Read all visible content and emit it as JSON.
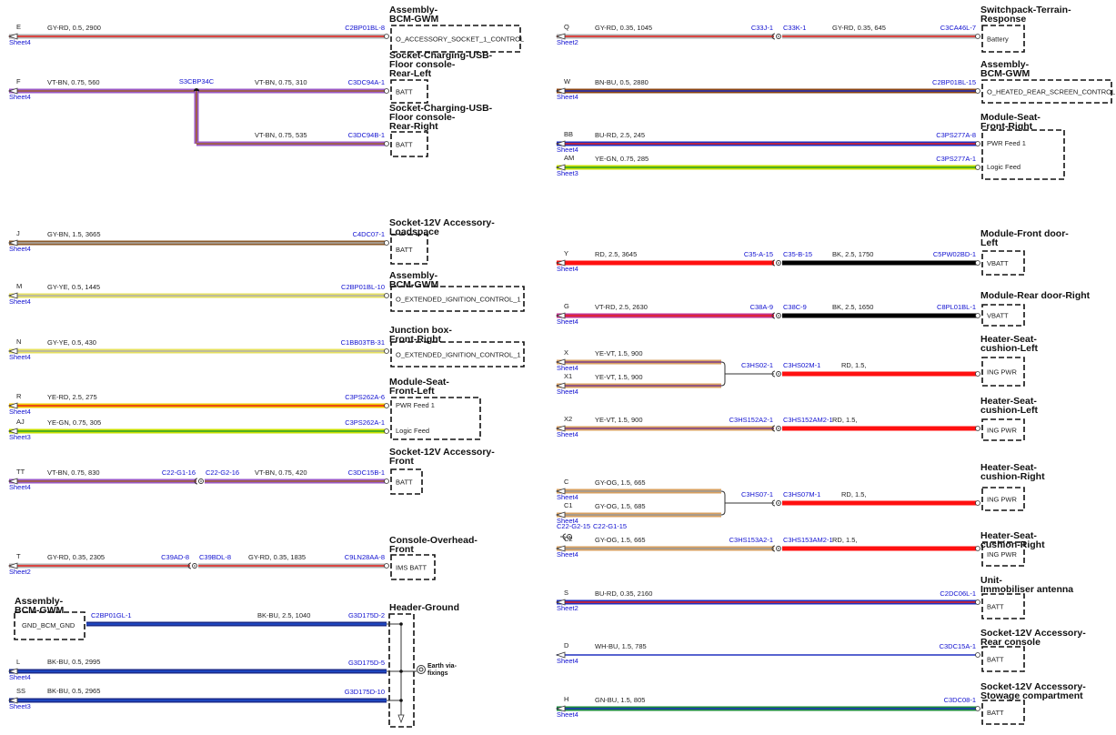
{
  "blocks": [
    {
      "title": [
        "Assembly-",
        "BCM-GWM"
      ],
      "pins": [
        "O_ACCESSORY_SOCKET_1_CONTROL"
      ],
      "wires": [
        {
          "id": "E",
          "sheet": "Sheet4",
          "label": "GY-RD, 0.5, 2900",
          "connector": "C2BP01BL-8"
        }
      ]
    },
    {
      "title": [
        "Socket-Charging-USB-",
        "Floor console-",
        "Rear-Left"
      ],
      "pins": [
        "BATT"
      ],
      "wires": [
        {
          "id": "F",
          "sheet": "Sheet4",
          "label": "VT-BN, 0.75, 560",
          "splice": "S3CBP34C",
          "label2": "VT-BN, 0.75, 310",
          "connector": "C3DC94A-1"
        }
      ]
    },
    {
      "title": [
        "Socket-Charging-USB-",
        "Floor console-",
        "Rear-Right"
      ],
      "pins": [
        "BATT"
      ],
      "wires": [
        {
          "label": "VT-BN, 0.75, 535",
          "connector": "C3DC94B-1"
        }
      ]
    },
    {
      "title": [
        "Socket-12V Accessory-",
        "Loadspace"
      ],
      "pins": [
        "BATT"
      ],
      "wires": [
        {
          "id": "J",
          "sheet": "Sheet4",
          "label": "GY-BN, 1.5, 3665",
          "connector": "C4DC07-1"
        }
      ]
    },
    {
      "title": [
        "Assembly-",
        "BCM-GWM"
      ],
      "pins": [
        "O_EXTENDED_IGNITION_CONTROL_1"
      ],
      "wires": [
        {
          "id": "M",
          "sheet": "Sheet4",
          "label": "GY-YE, 0.5, 1445",
          "connector": "C2BP01BL-10"
        }
      ]
    },
    {
      "title": [
        "Junction box-",
        "Front-Right"
      ],
      "pins": [
        "O_EXTENDED_IGNITION_CONTROL_1"
      ],
      "wires": [
        {
          "id": "N",
          "sheet": "Sheet4",
          "label": "GY-YE, 0.5, 430",
          "connector": "C1BB03TB-31"
        }
      ]
    },
    {
      "title": [
        "Module-Seat-",
        "Front-Left"
      ],
      "pins": [
        "PWR Feed 1",
        "Logic Feed"
      ],
      "wires": [
        {
          "id": "R",
          "sheet": "Sheet4",
          "label": "YE-RD, 2.5, 275",
          "connector": "C3PS262A-6"
        },
        {
          "id": "AJ",
          "sheet": "Sheet3",
          "label": "YE-GN, 0.75, 305",
          "connector": "C3PS262A-1"
        }
      ]
    },
    {
      "title": [
        "Socket-12V Accessory-",
        "Front"
      ],
      "pins": [
        "BATT"
      ],
      "wires": [
        {
          "id": "TT",
          "sheet": "Sheet4",
          "label": "VT-BN, 0.75, 830",
          "inline": [
            "C22-G1-16",
            "C22-G2-16"
          ],
          "label2": "VT-BN, 0.75, 420",
          "connector": "C3DC15B-1"
        }
      ]
    },
    {
      "title": [
        "Console-Overhead-",
        "Front"
      ],
      "pins": [
        "IMS BATT"
      ],
      "wires": [
        {
          "id": "T",
          "sheet": "Sheet2",
          "label": "GY-RD, 0.35, 2305",
          "inline": [
            "C39AD-8",
            "C39BDL-8"
          ],
          "label2": "GY-RD, 0.35, 1835",
          "connector": "C9LN28AA-8"
        }
      ]
    },
    {
      "title": [
        "Header-Ground"
      ],
      "source": {
        "title": [
          "Assembly-",
          "BCM-GWM"
        ],
        "pin": "GND_BCM_GND",
        "connector": "C2BP01GL-1"
      },
      "earth": [
        "Earth via-",
        "fixings"
      ],
      "wires": [
        {
          "label": "BK-BU, 2.5, 1040",
          "connector": "G3D175D-2"
        },
        {
          "id": "L",
          "sheet": "Sheet4",
          "label": "BK-BU, 0.5, 2995",
          "connector": "G3D175D-5"
        },
        {
          "id": "SS",
          "sheet": "Sheet3",
          "label": "BK-BU, 0.5, 2965",
          "connector": "G3D175D-10"
        }
      ]
    },
    {
      "title": [
        "Switchpack-Terrain-",
        "Response"
      ],
      "pins": [
        "Battery"
      ],
      "wires": [
        {
          "id": "Q",
          "sheet": "Sheet2",
          "label": "GY-RD, 0.35, 1045",
          "inline": [
            "C33J-1",
            "C33K-1"
          ],
          "label2": "GY-RD, 0.35, 645",
          "connector": "C3CA46L-7"
        }
      ]
    },
    {
      "title": [
        "Assembly-",
        "BCM-GWM"
      ],
      "pins": [
        "O_HEATED_REAR_SCREEN_CONTROL"
      ],
      "wires": [
        {
          "id": "W",
          "sheet": "Sheet4",
          "label": "BN-BU, 0.5, 2880",
          "connector": "C2BP01BL-15"
        }
      ]
    },
    {
      "title": [
        "Module-Seat-",
        "Front-Right"
      ],
      "pins": [
        "PWR Feed 1",
        "Logic Feed"
      ],
      "wires": [
        {
          "id": "BB",
          "sheet": "Sheet4",
          "label": "BU-RD, 2.5, 245",
          "connector": "C3PS277A-8"
        },
        {
          "id": "AM",
          "sheet": "Sheet3",
          "label": "YE-GN, 0.75, 285",
          "connector": "C3PS277A-1"
        }
      ]
    },
    {
      "title": [
        "Module-Front door-",
        "Left"
      ],
      "pins": [
        "VBATT"
      ],
      "wires": [
        {
          "id": "Y",
          "sheet": "Sheet4",
          "label": "RD, 2.5, 3645",
          "inline": [
            "C35-A-15",
            "C35-B-15"
          ],
          "label2": "BK, 2.5, 1750",
          "connector": "C5PW02BD-1"
        }
      ]
    },
    {
      "title": [
        "Module-Rear door-Right"
      ],
      "pins": [
        "VBATT"
      ],
      "wires": [
        {
          "id": "G",
          "sheet": "Sheet4",
          "label": "VT-RD, 2.5, 2630",
          "inline": [
            "C38A-9",
            "C38C-9"
          ],
          "label2": "BK, 2.5, 1650",
          "connector": "C8PL01BL-1"
        }
      ]
    },
    {
      "title": [
        "Heater-Seat-",
        "cushion-Left"
      ],
      "pins": [
        "ING PWR"
      ],
      "wires": [
        {
          "id": "X",
          "sheet": "Sheet4",
          "label": "YE-VT, 1.5, 900"
        },
        {
          "id": "X1",
          "sheet": "Sheet4",
          "label": "YE-VT, 1.5, 900"
        }
      ],
      "feed": {
        "inline": [
          "C3HS02-1",
          "C3HS02M-1"
        ],
        "label": "RD, 1.5,"
      }
    },
    {
      "title": [
        "Heater-Seat-",
        "cushion-Left"
      ],
      "pins": [
        "ING PWR"
      ],
      "wires": [
        {
          "id": "X2",
          "sheet": "Sheet4",
          "label": "YE-VT, 1.5, 900",
          "inline": [
            "C3HS152A2-1",
            "C3HS152AM2-1"
          ],
          "label2": "RD, 1.5,"
        }
      ]
    },
    {
      "title": [
        "Heater-Seat-",
        "cushion-Right"
      ],
      "pins": [
        "ING PWR"
      ],
      "wires": [
        {
          "id": "C",
          "sheet": "Sheet4",
          "label": "GY-OG, 1.5, 665"
        },
        {
          "id": "C1",
          "sheet": "Sheet4",
          "label": "GY-OG, 1.5, 685"
        }
      ],
      "feed": {
        "inline": [
          "C3HS07-1",
          "C3HS07M-1"
        ],
        "label": "RD, 1.5,"
      },
      "loose": [
        "C22-G2-15",
        "C22-G1-15"
      ]
    },
    {
      "title": [
        "Heater-Seat-",
        "cushion-Right"
      ],
      "pins": [
        "ING PWR"
      ],
      "wires": [
        {
          "id": "C2",
          "sheet": "Sheet4",
          "label": "GY-OG, 1.5, 665",
          "inline": [
            "C3HS153A2-1",
            "C3HS153AM2-1"
          ],
          "label2": "RD, 1.5,"
        }
      ]
    },
    {
      "title": [
        "Unit-",
        "Immobiliser antenna"
      ],
      "pins": [
        "BATT"
      ],
      "wires": [
        {
          "id": "S",
          "sheet": "Sheet2",
          "label": "BU-RD, 0.35, 2160",
          "connector": "C2DC06L-1"
        }
      ]
    },
    {
      "title": [
        "Socket-12V Accessory-",
        "Rear console"
      ],
      "pins": [
        "BATT"
      ],
      "wires": [
        {
          "id": "D",
          "sheet": "Sheet4",
          "label": "WH-BU, 1.5, 785",
          "connector": "C3DC15A-1"
        }
      ]
    },
    {
      "title": [
        "Socket-12V Accessory-",
        "Stowage compartment"
      ],
      "pins": [
        "BATT"
      ],
      "wires": [
        {
          "id": "H",
          "sheet": "Sheet4",
          "label": "GN-BU, 1.5, 805",
          "connector": "C3DC08-1"
        }
      ]
    }
  ]
}
